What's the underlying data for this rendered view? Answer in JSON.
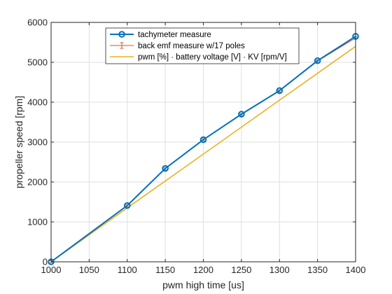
{
  "chart_data": {
    "type": "line",
    "title": "",
    "xlabel": "pwm high time [us]",
    "ylabel": "propeller speed [rpm]",
    "xlim": [
      1000,
      1400
    ],
    "ylim": [
      0,
      6000
    ],
    "xticks": [
      1000,
      1050,
      1100,
      1150,
      1200,
      1250,
      1300,
      1350,
      1400
    ],
    "yticks": [
      0,
      1000,
      2000,
      3000,
      4000,
      5000,
      6000
    ],
    "grid": true,
    "legend_position": "top-center",
    "x": [
      1000,
      1100,
      1150,
      1200,
      1250,
      1300,
      1350,
      1400
    ],
    "series": [
      {
        "name": "tachymeter measure",
        "style": "line-circle-markers",
        "color": "#0072BD",
        "values": [
          0,
          1410,
          2340,
          3060,
          3700,
          4290,
          5040,
          5650
        ]
      },
      {
        "name": "back emf measure w/17 poles",
        "style": "line-errorbar",
        "color": "#D95319",
        "values": [
          0,
          1400,
          2330,
          3060,
          3690,
          4280,
          5030,
          5610
        ]
      },
      {
        "name": "pwm [%] · battery voltage [V] · KV [rpm/V]",
        "style": "line",
        "color": "#EDB120",
        "values": [
          0,
          1350,
          2025,
          2700,
          3375,
          4050,
          4725,
          5400
        ]
      }
    ]
  }
}
